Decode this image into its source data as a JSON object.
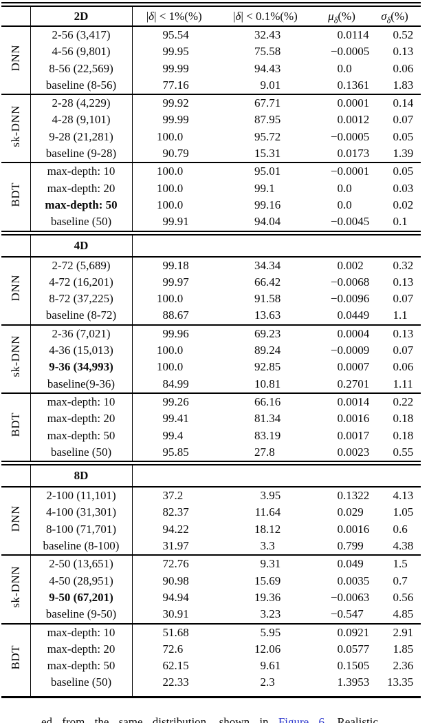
{
  "colors": {
    "link_blue": "#2a35cc",
    "text": "#0b0b0b",
    "rule": "#000000"
  },
  "table": {
    "col_headers": [
      {
        "pre": "|",
        "sym": "δ",
        "post": "| < 1%(%)"
      },
      {
        "pre": "|",
        "sym": "δ",
        "post": "| < 0.1%(%)"
      },
      {
        "pre": "",
        "sym": "μ",
        "sub": "δ",
        "post": "(%)"
      },
      {
        "pre": "",
        "sym": "σ",
        "sub": "δ",
        "post": "(%)"
      }
    ],
    "sections": [
      {
        "dim": "2D",
        "show_col_headers": true,
        "groups": [
          {
            "label": "DNN",
            "rows": [
              {
                "config": "2-56 (3,417)",
                "bold": false,
                "values": [
                  "95.54",
                  "32.43",
                  "0.0114",
                  "0.52"
                ]
              },
              {
                "config": "4-56 (9,801)",
                "bold": false,
                "values": [
                  "99.95",
                  "75.58",
                  "−0.0005",
                  "0.13"
                ]
              },
              {
                "config": "8-56 (22,569)",
                "bold": false,
                "values": [
                  "99.99",
                  "94.43",
                  "0.0",
                  "0.06"
                ]
              },
              {
                "config": "baseline (8-56)",
                "bold": false,
                "values": [
                  "77.16",
                  "9.01",
                  "0.1361",
                  "1.83"
                ]
              }
            ]
          },
          {
            "label": "sk-DNN",
            "rows": [
              {
                "config": "2-28 (4,229)",
                "bold": false,
                "values": [
                  "99.92",
                  "67.71",
                  "0.0001",
                  "0.14"
                ]
              },
              {
                "config": "4-28 (9,101)",
                "bold": false,
                "values": [
                  "99.99",
                  "87.95",
                  "0.0012",
                  "0.07"
                ]
              },
              {
                "config": "9-28 (21,281)",
                "bold": false,
                "values": [
                  "100.0",
                  "95.72",
                  "−0.0005",
                  "0.05"
                ]
              },
              {
                "config": "baseline (9-28)",
                "bold": false,
                "values": [
                  "90.79",
                  "15.31",
                  "0.0173",
                  "1.39"
                ]
              }
            ]
          },
          {
            "label": "BDT",
            "rows": [
              {
                "config": "max-depth: 10",
                "bold": false,
                "values": [
                  "100.0",
                  "95.01",
                  "−0.0001",
                  "0.05"
                ]
              },
              {
                "config": "max-depth: 20",
                "bold": false,
                "values": [
                  "100.0",
                  "99.1",
                  "0.0",
                  "0.03"
                ]
              },
              {
                "config": "max-depth: 50",
                "bold": true,
                "values": [
                  "100.0",
                  "99.16",
                  "0.0",
                  "0.02"
                ]
              },
              {
                "config": "baseline (50)",
                "bold": false,
                "values": [
                  "99.91",
                  "94.04",
                  "−0.0045",
                  "0.1"
                ]
              }
            ]
          }
        ]
      },
      {
        "dim": "4D",
        "show_col_headers": false,
        "groups": [
          {
            "label": "DNN",
            "rows": [
              {
                "config": "2-72 (5,689)",
                "bold": false,
                "values": [
                  "99.18",
                  "34.34",
                  "0.002",
                  "0.32"
                ]
              },
              {
                "config": "4-72 (16,201)",
                "bold": false,
                "values": [
                  "99.97",
                  "66.42",
                  "−0.0068",
                  "0.13"
                ]
              },
              {
                "config": "8-72 (37,225)",
                "bold": false,
                "values": [
                  "100.0",
                  "91.58",
                  "−0.0096",
                  "0.07"
                ]
              },
              {
                "config": "baseline (8-72)",
                "bold": false,
                "values": [
                  "88.67",
                  "13.63",
                  "0.0449",
                  "1.1"
                ]
              }
            ]
          },
          {
            "label": "sk-DNN",
            "rows": [
              {
                "config": "2-36 (7,021)",
                "bold": false,
                "values": [
                  "99.96",
                  "69.23",
                  "0.0004",
                  "0.13"
                ]
              },
              {
                "config": "4-36 (15,013)",
                "bold": false,
                "values": [
                  "100.0",
                  "89.24",
                  "−0.0009",
                  "0.07"
                ]
              },
              {
                "config": "9-36 (34,993)",
                "bold": true,
                "values": [
                  "100.0",
                  "92.85",
                  "0.0007",
                  "0.06"
                ]
              },
              {
                "config": "baseline(9-36)",
                "bold": false,
                "values": [
                  "84.99",
                  "10.81",
                  "0.2701",
                  "1.11"
                ]
              }
            ]
          },
          {
            "label": "BDT",
            "rows": [
              {
                "config": "max-depth: 10",
                "bold": false,
                "values": [
                  "99.26",
                  "66.16",
                  "0.0014",
                  "0.22"
                ]
              },
              {
                "config": "max-depth: 20",
                "bold": false,
                "values": [
                  "99.41",
                  "81.34",
                  "0.0016",
                  "0.18"
                ]
              },
              {
                "config": "max-depth: 50",
                "bold": false,
                "values": [
                  "99.4",
                  "83.19",
                  "0.0017",
                  "0.18"
                ]
              },
              {
                "config": "baseline (50)",
                "bold": false,
                "values": [
                  "95.85",
                  "27.8",
                  "0.0023",
                  "0.55"
                ]
              }
            ]
          }
        ]
      },
      {
        "dim": "8D",
        "show_col_headers": false,
        "groups": [
          {
            "label": "DNN",
            "rows": [
              {
                "config": "2-100 (11,101)",
                "bold": false,
                "values": [
                  "37.2",
                  "3.95",
                  "0.1322",
                  "4.13"
                ]
              },
              {
                "config": "4-100 (31,301)",
                "bold": false,
                "values": [
                  "82.37",
                  "11.64",
                  "0.029",
                  "1.05"
                ]
              },
              {
                "config": "8-100 (71,701)",
                "bold": false,
                "values": [
                  "94.22",
                  "18.12",
                  "0.0016",
                  "0.6"
                ]
              },
              {
                "config": "baseline (8-100)",
                "bold": false,
                "values": [
                  "31.97",
                  "3.3",
                  "0.799",
                  "4.38"
                ]
              }
            ]
          },
          {
            "label": "sk-DNN",
            "rows": [
              {
                "config": "2-50 (13,651)",
                "bold": false,
                "values": [
                  "72.76",
                  "9.31",
                  "0.049",
                  "1.5"
                ]
              },
              {
                "config": "4-50 (28,951)",
                "bold": false,
                "values": [
                  "90.98",
                  "15.69",
                  "0.0035",
                  "0.7"
                ]
              },
              {
                "config": "9-50 (67,201)",
                "bold": true,
                "values": [
                  "94.94",
                  "19.36",
                  "−0.0063",
                  "0.56"
                ]
              },
              {
                "config": "baseline (9-50)",
                "bold": false,
                "values": [
                  "30.91",
                  "3.23",
                  "−0.547",
                  "4.85"
                ]
              }
            ]
          },
          {
            "label": "BDT",
            "rows": [
              {
                "config": "max-depth: 10",
                "bold": false,
                "values": [
                  "51.68",
                  "5.95",
                  "0.0921",
                  "2.91"
                ]
              },
              {
                "config": "max-depth: 20",
                "bold": false,
                "values": [
                  "72.6",
                  "12.06",
                  "0.0577",
                  "1.85"
                ]
              },
              {
                "config": "max-depth: 50",
                "bold": false,
                "values": [
                  "62.15",
                  "9.61",
                  "0.1505",
                  "2.36"
                ]
              },
              {
                "config": "baseline (50)",
                "bold": false,
                "values": [
                  "22.33",
                  "2.3",
                  "1.3953",
                  "13.35"
                ]
              }
            ]
          }
        ]
      }
    ]
  },
  "caption": {
    "pre": "ed from the same distribution, shown in ",
    "link": "Figure 6",
    "post": ". Realistic"
  }
}
